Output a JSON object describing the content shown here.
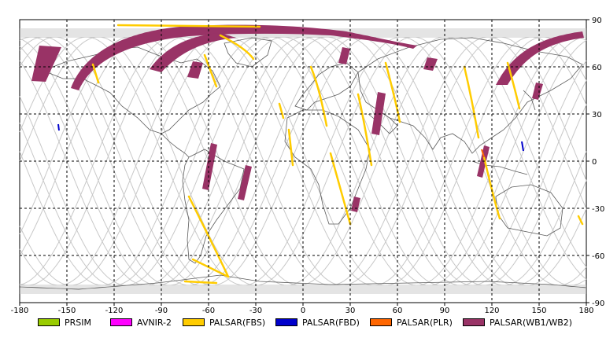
{
  "map": {
    "lon_ticks": [
      "-180",
      "-150",
      "-120",
      "-90",
      "-60",
      "-30",
      "0",
      "30",
      "60",
      "90",
      "120",
      "150",
      "180"
    ],
    "lat_ticks": [
      "90",
      "60",
      "30",
      "0",
      "-30",
      "-60",
      "-90"
    ],
    "colors": {
      "coast": "#5a5a5a",
      "orbit": "#c8c8c8",
      "grid": "#000000",
      "prsim": "#99cc00",
      "avnir": "#ff00ff",
      "fbs": "#ffcc00",
      "fbd": "#0000cc",
      "plr": "#ff6600",
      "wb": "#993366"
    }
  },
  "legend": [
    {
      "label": "PRSIM",
      "color": "#99cc00"
    },
    {
      "label": "AVNIR-2",
      "color": "#ff00ff"
    },
    {
      "label": "PALSAR(FBS)",
      "color": "#ffcc00"
    },
    {
      "label": "PALSAR(FBD)",
      "color": "#0000cc"
    },
    {
      "label": "PALSAR(PLR)",
      "color": "#ff6600"
    },
    {
      "label": "PALSAR(WB1/WB2)",
      "color": "#993366"
    }
  ]
}
